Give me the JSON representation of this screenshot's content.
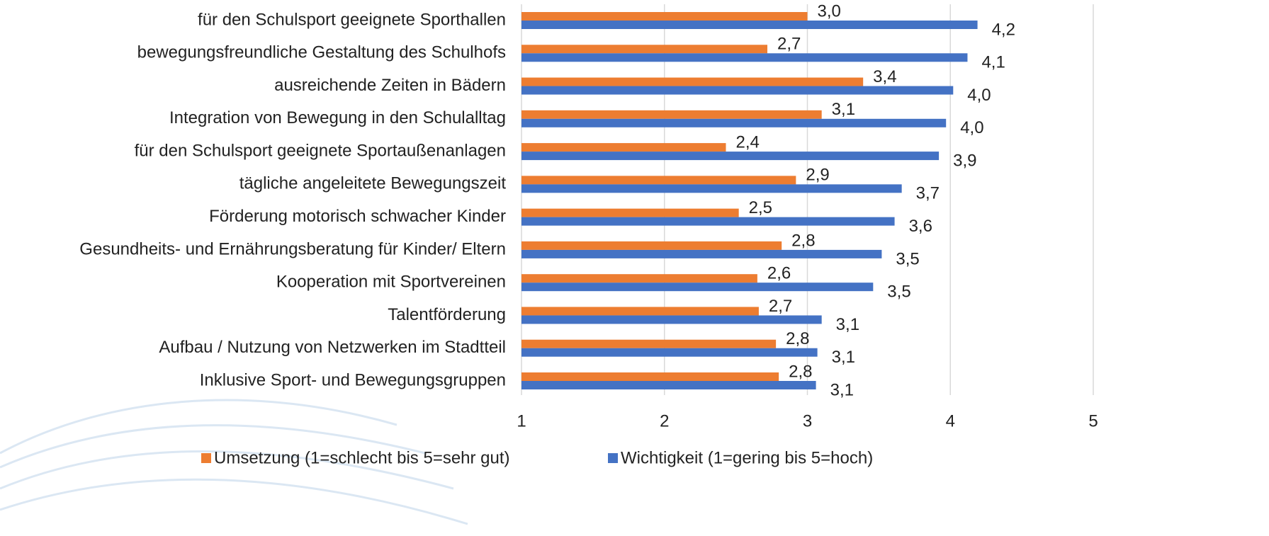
{
  "chart_data": {
    "type": "hbar",
    "categories": [
      "für den Schulsport geeignete Sporthallen",
      "bewegungsfreundliche Gestaltung des Schulhofs",
      "ausreichende Zeiten in Bädern ",
      "Integration von Bewegung in den Schulalltag",
      "für den Schulsport geeignete Sportaußenanlagen ",
      "tägliche angeleitete Bewegungszeit",
      "Förderung motorisch schwacher Kinder",
      "Gesundheits- und Ernährungsberatung für Kinder/ Eltern",
      "Kooperation mit Sportvereinen",
      "Talentförderung",
      "Aufbau / Nutzung von Netzwerken im Stadtteil",
      "Inklusive Sport- und Bewegungsgruppen"
    ],
    "series": [
      {
        "name": "Umsetzung (1=schlecht bis 5=sehr gut)",
        "color": "#ed7d31",
        "values": [
          3.0,
          2.72,
          3.39,
          3.1,
          2.43,
          2.92,
          2.52,
          2.82,
          2.65,
          2.66,
          2.78,
          2.8
        ],
        "value_labels": [
          "3,0",
          "2,7",
          "3,4",
          "3,1",
          "2,4",
          "2,9",
          "2,5",
          "2,8",
          "2,6",
          "2,7",
          "2,8",
          "2,8"
        ]
      },
      {
        "name": "Wichtigkeit (1=gering bis 5=hoch)",
        "color": "#4472c4",
        "values": [
          4.19,
          4.12,
          4.02,
          3.97,
          3.92,
          3.66,
          3.61,
          3.52,
          3.46,
          3.1,
          3.07,
          3.06
        ],
        "value_labels": [
          "4,2",
          "4,1",
          "4,0",
          "4,0",
          "3,9",
          "3,7",
          "3,6",
          "3,5",
          "3,5",
          "3,1",
          "3,1",
          "3,1"
        ]
      }
    ],
    "xlim": [
      1,
      5
    ],
    "xticks": [
      1,
      2,
      3,
      4,
      5
    ],
    "grid": true,
    "legend": "bottom"
  }
}
